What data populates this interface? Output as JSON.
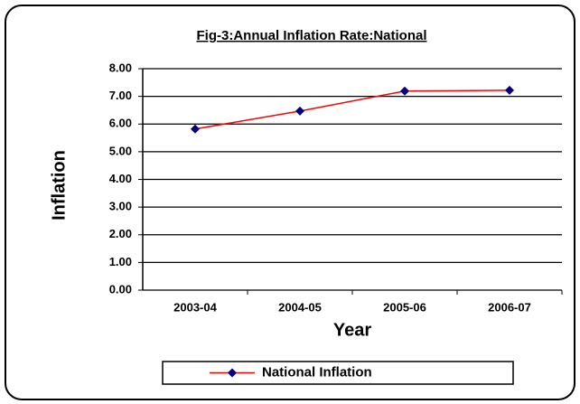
{
  "chart_data": {
    "type": "line",
    "title": "Fig-3:Annual Inflation Rate:National",
    "x_label": "Year",
    "y_label": "Inflation",
    "categories": [
      "2003-04",
      "2004-05",
      "2005-06",
      "2006-07"
    ],
    "series": [
      {
        "name": "National Inflation",
        "color": "#ff0000",
        "marker_color": "#000080",
        "values": [
          5.82,
          6.47,
          7.19,
          7.22
        ]
      }
    ],
    "ylim": [
      0,
      8
    ],
    "yticks": [
      {
        "value": 0,
        "label": "0.00"
      },
      {
        "value": 1,
        "label": "1.00"
      },
      {
        "value": 2,
        "label": "2.00"
      },
      {
        "value": 3,
        "label": "3.00"
      },
      {
        "value": 4,
        "label": "4.00"
      },
      {
        "value": 5,
        "label": "5.00"
      },
      {
        "value": 6,
        "label": "6.00"
      },
      {
        "value": 7,
        "label": "7.00"
      },
      {
        "value": 8,
        "label": "8.00"
      }
    ],
    "grid": true,
    "legend": "bottom"
  }
}
